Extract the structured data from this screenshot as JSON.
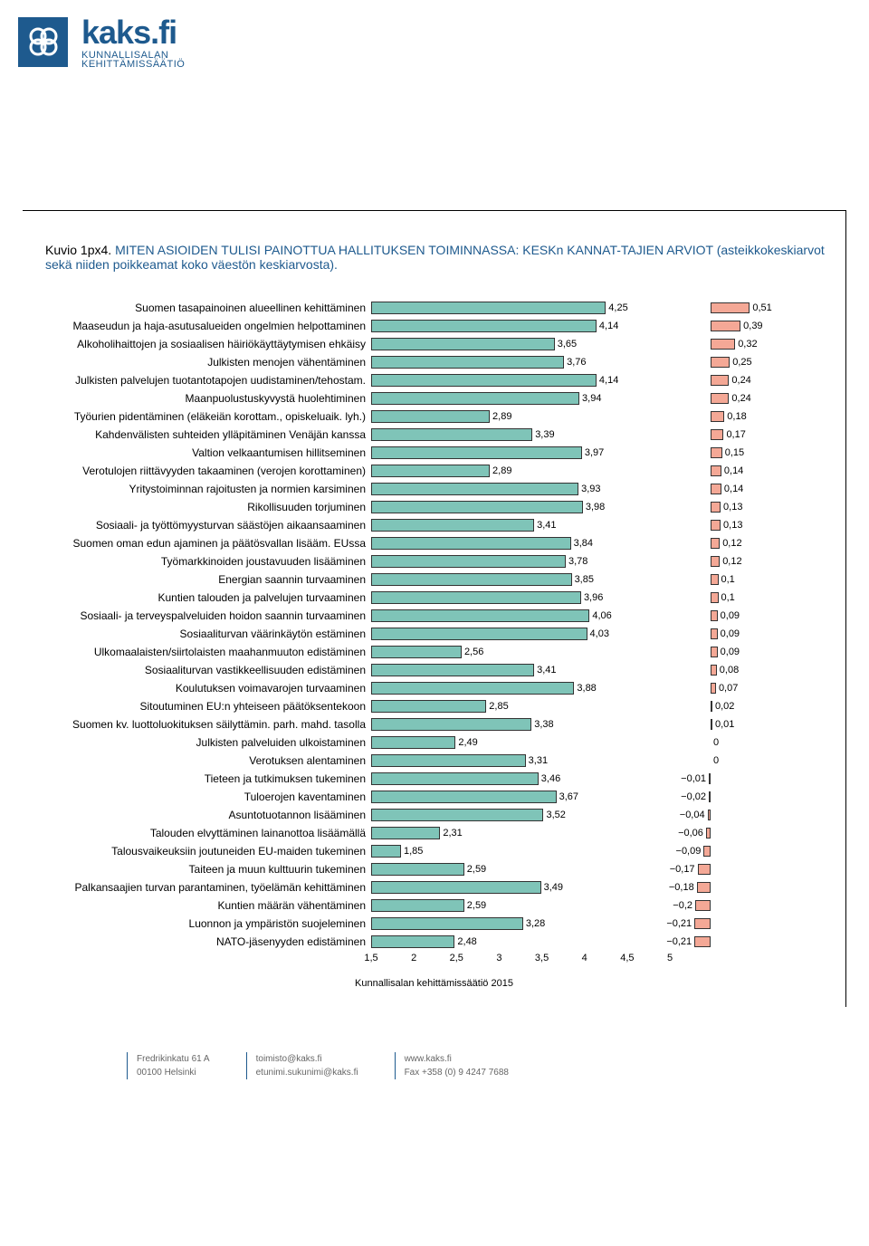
{
  "logo": {
    "main": "kaks.fi",
    "sub1": "KUNNALLISALAN",
    "sub2": "KEHITTÄMISSÄÄTIÖ"
  },
  "chart": {
    "title_prefix": "Kuvio 1px4.",
    "title_main": "MITEN ASIOIDEN TULISI PAINOTTUA HALLITUKSEN TOIMINNASSA: KESKn KANNAT-TAJIEN ARVIOT (asteikkokeskiarvot sekä niiden poikkeamat koko väestön keskiarvosta).",
    "footer": "Kunnallisalan kehittämissäätiö 2015",
    "bar_color": "#7fc4b8",
    "dev_color": "#f4a896",
    "border_color": "#333333",
    "bg_color": "#ffffff",
    "font_size_row": 12,
    "x_axis": {
      "min": 1.5,
      "max": 5.0,
      "ticks": [
        1.5,
        2,
        2.5,
        3,
        3.5,
        4,
        4.5,
        5
      ]
    },
    "dev_axis": {
      "center": 0,
      "max": 0.55,
      "min": -0.25
    },
    "rows": [
      {
        "label": "Suomen tasapainoinen alueellinen kehittäminen",
        "value": 4.25,
        "dev": 0.51
      },
      {
        "label": "Maaseudun ja haja-asutusalueiden ongelmien helpottaminen",
        "value": 4.14,
        "dev": 0.39
      },
      {
        "label": "Alkoholihaittojen ja sosiaalisen häiriökäyttäytymisen ehkäisy",
        "value": 3.65,
        "dev": 0.32
      },
      {
        "label": "Julkisten menojen vähentäminen",
        "value": 3.76,
        "dev": 0.25
      },
      {
        "label": "Julkisten palvelujen tuotantotapojen uudistaminen/tehostam.",
        "value": 4.14,
        "dev": 0.24
      },
      {
        "label": "Maanpuolustuskyvystä huolehtiminen",
        "value": 3.94,
        "dev": 0.24
      },
      {
        "label": "Työurien pidentäminen (eläkeiän korottam., opiskeluaik. lyh.)",
        "value": 2.89,
        "dev": 0.18
      },
      {
        "label": "Kahdenvälisten suhteiden ylläpitäminen Venäjän kanssa",
        "value": 3.39,
        "dev": 0.17
      },
      {
        "label": "Valtion velkaantumisen hillitseminen",
        "value": 3.97,
        "dev": 0.15
      },
      {
        "label": "Verotulojen riittävyyden takaaminen (verojen korottaminen)",
        "value": 2.89,
        "dev": 0.14
      },
      {
        "label": "Yritystoiminnan rajoitusten ja normien karsiminen",
        "value": 3.93,
        "dev": 0.14
      },
      {
        "label": "Rikollisuuden torjuminen",
        "value": 3.98,
        "dev": 0.13
      },
      {
        "label": "Sosiaali- ja työttömyysturvan säästöjen aikaansaaminen",
        "value": 3.41,
        "dev": 0.13
      },
      {
        "label": "Suomen oman edun ajaminen ja päätösvallan lisääm. EUssa",
        "value": 3.84,
        "dev": 0.12
      },
      {
        "label": "Työmarkkinoiden joustavuuden lisääminen",
        "value": 3.78,
        "dev": 0.12
      },
      {
        "label": "Energian saannin turvaaminen",
        "value": 3.85,
        "dev": 0.1
      },
      {
        "label": "Kuntien talouden ja palvelujen turvaaminen",
        "value": 3.96,
        "dev": 0.1
      },
      {
        "label": "Sosiaali- ja terveyspalveluiden hoidon saannin turvaaminen",
        "value": 4.06,
        "dev": 0.09
      },
      {
        "label": "Sosiaaliturvan väärinkäytön estäminen",
        "value": 4.03,
        "dev": 0.09
      },
      {
        "label": "Ulkomaalaisten/siirtolaisten maahanmuuton edistäminen",
        "value": 2.56,
        "dev": 0.09
      },
      {
        "label": "Sosiaaliturvan vastikkeellisuuden edistäminen",
        "value": 3.41,
        "dev": 0.08
      },
      {
        "label": "Koulutuksen voimavarojen turvaaminen",
        "value": 3.88,
        "dev": 0.07
      },
      {
        "label": "Sitoutuminen EU:n yhteiseen päätöksentekoon",
        "value": 2.85,
        "dev": 0.02
      },
      {
        "label": "Suomen kv. luottoluokituksen säilyttämin. parh. mahd. tasolla",
        "value": 3.38,
        "dev": 0.01
      },
      {
        "label": "Julkisten palveluiden ulkoistaminen",
        "value": 2.49,
        "dev": 0
      },
      {
        "label": "Verotuksen alentaminen",
        "value": 3.31,
        "dev": 0
      },
      {
        "label": "Tieteen ja tutkimuksen tukeminen",
        "value": 3.46,
        "dev": -0.01
      },
      {
        "label": "Tuloerojen kaventaminen",
        "value": 3.67,
        "dev": -0.02
      },
      {
        "label": "Asuntotuotannon lisääminen",
        "value": 3.52,
        "dev": -0.04
      },
      {
        "label": "Talouden elvyttäminen lainanottoa lisäämällä",
        "value": 2.31,
        "dev": -0.06
      },
      {
        "label": "Talousvaikeuksiin joutuneiden EU-maiden tukeminen",
        "value": 1.85,
        "dev": -0.09
      },
      {
        "label": "Taiteen ja muun kulttuurin tukeminen",
        "value": 2.59,
        "dev": -0.17
      },
      {
        "label": "Palkansaajien turvan parantaminen, työelämän kehittäminen",
        "value": 3.49,
        "dev": -0.18
      },
      {
        "label": "Kuntien määrän vähentäminen",
        "value": 2.59,
        "dev": -0.2
      },
      {
        "label": "Luonnon ja ympäristön suojeleminen",
        "value": 3.28,
        "dev": -0.21
      },
      {
        "label": "NATO-jäsenyyden edistäminen",
        "value": 2.48,
        "dev": -0.21
      }
    ]
  },
  "footer": {
    "col1a": "Fredrikinkatu 61 A",
    "col1b": "00100 Helsinki",
    "col2a": "toimisto@kaks.fi",
    "col2b": "etunimi.sukunimi@kaks.fi",
    "col3a": "www.kaks.fi",
    "col3b": "Fax +358 (0) 9 4247 7688"
  }
}
